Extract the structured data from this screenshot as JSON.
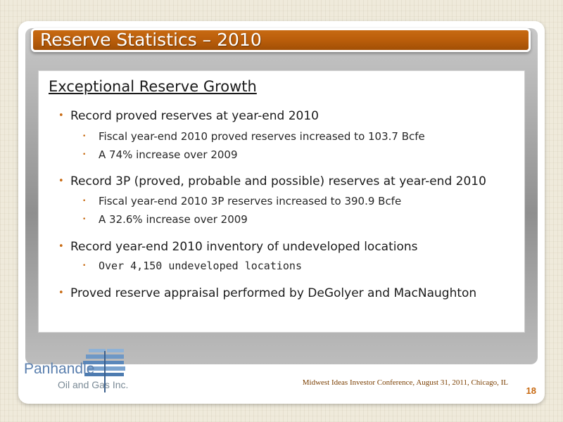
{
  "slide": {
    "title": "Reserve Statistics – 2010",
    "heading": "Exceptional Reserve Growth",
    "bullets": [
      {
        "text": "Record proved reserves at year-end 2010",
        "subs": [
          "Fiscal year-end 2010 proved reserves increased to 103.7 Bcfe",
          "A 74% increase over 2009"
        ]
      },
      {
        "text": "Record 3P (proved, probable and possible) reserves at year-end 2010",
        "subs": [
          "Fiscal year-end 2010 3P reserves increased to 390.9 Bcfe",
          "A 32.6% increase over 2009"
        ]
      },
      {
        "text": "Record year-end 2010 inventory of undeveloped locations",
        "subs": [
          "Over 4,150 undeveloped locations"
        ]
      },
      {
        "text": "Proved reserve appraisal performed by DeGolyer and MacNaughton",
        "subs": []
      }
    ],
    "bullet_symbol": "•"
  },
  "logo": {
    "name": "Panhandle",
    "subtitle": "Oil and Gas Inc."
  },
  "footer": {
    "event": "Midwest Ideas Investor Conference, August 31, 2011, Chicago, IL",
    "page_number": "18"
  },
  "colors": {
    "title_bar": "#b85c0a",
    "bullet": "#c86a12",
    "logo_blue": "#5a7fae"
  }
}
